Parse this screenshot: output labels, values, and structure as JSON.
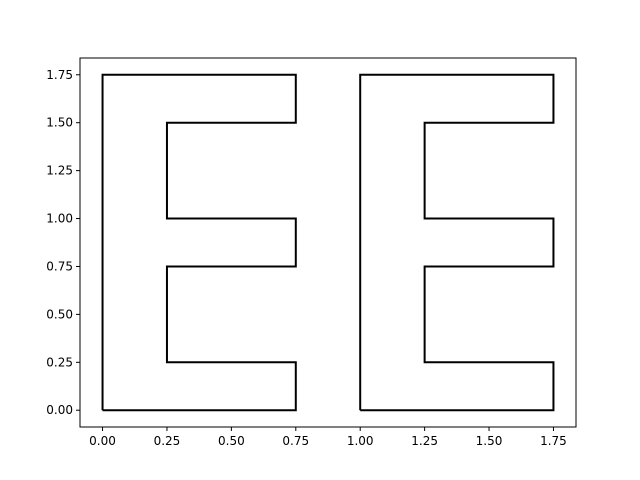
{
  "chart_data": {
    "type": "line",
    "title": "",
    "xlabel": "",
    "ylabel": "",
    "xlim": [
      -0.0875,
      1.8375
    ],
    "ylim": [
      -0.0875,
      1.8375
    ],
    "grid": false,
    "legend": "none",
    "xticks": [
      0.0,
      0.25,
      0.5,
      0.75,
      1.0,
      1.25,
      1.5,
      1.75
    ],
    "yticks": [
      0.0,
      0.25,
      0.5,
      0.75,
      1.0,
      1.25,
      1.5,
      1.75
    ],
    "xtick_labels": [
      "0.00",
      "0.25",
      "0.50",
      "0.75",
      "1.00",
      "1.25",
      "1.50",
      "1.75"
    ],
    "ytick_labels": [
      "0.00",
      "0.25",
      "0.50",
      "0.75",
      "1.00",
      "1.25",
      "1.50",
      "1.75"
    ],
    "series": [
      {
        "color": "#000000",
        "x": [
          0.0,
          0.75,
          0.75,
          0.25,
          0.25,
          0.75,
          0.75,
          0.25,
          0.25,
          0.75,
          0.75,
          0.0,
          0.0
        ],
        "y": [
          0.0,
          0.0,
          0.25,
          0.25,
          0.75,
          0.75,
          1.0,
          1.0,
          1.5,
          1.5,
          1.75,
          1.75,
          0.0
        ]
      },
      {
        "color": "#000000",
        "x": [
          1.0,
          1.75,
          1.75,
          1.25,
          1.25,
          1.75,
          1.75,
          1.25,
          1.25,
          1.75,
          1.75,
          1.0,
          1.0
        ],
        "y": [
          0.0,
          0.0,
          0.25,
          0.25,
          0.75,
          0.75,
          1.0,
          1.0,
          1.5,
          1.5,
          1.75,
          1.75,
          0.0
        ]
      }
    ]
  }
}
